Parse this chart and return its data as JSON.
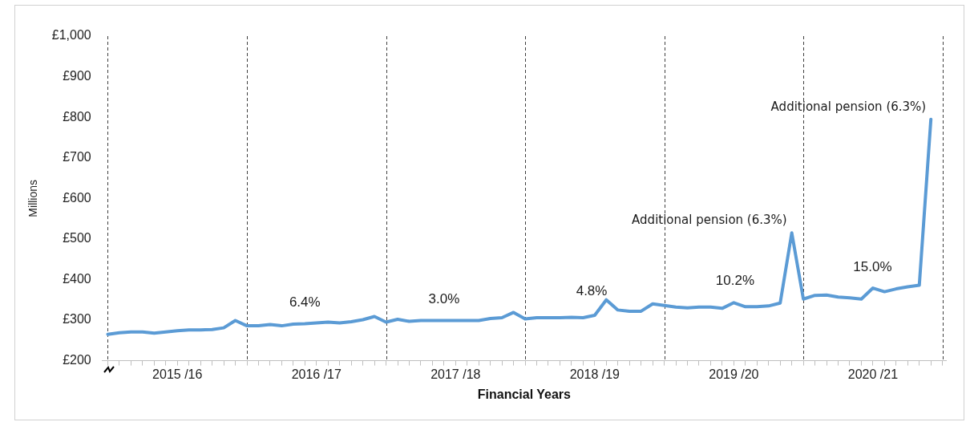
{
  "chart_data": {
    "type": "line",
    "xlabel": "Financial Years",
    "ylabel": "Millions",
    "x": [
      "2015-04",
      "2015-05",
      "2015-06",
      "2015-07",
      "2015-08",
      "2015-09",
      "2015-10",
      "2015-11",
      "2015-12",
      "2016-01",
      "2016-02",
      "2016-03",
      "2016-04",
      "2016-05",
      "2016-06",
      "2016-07",
      "2016-08",
      "2016-09",
      "2016-10",
      "2016-11",
      "2016-12",
      "2017-01",
      "2017-02",
      "2017-03",
      "2017-04",
      "2017-05",
      "2017-06",
      "2017-07",
      "2017-08",
      "2017-09",
      "2017-10",
      "2017-11",
      "2017-12",
      "2018-01",
      "2018-02",
      "2018-03",
      "2018-04",
      "2018-05",
      "2018-06",
      "2018-07",
      "2018-08",
      "2018-09",
      "2018-10",
      "2018-11",
      "2018-12",
      "2019-01",
      "2019-02",
      "2019-03",
      "2019-04",
      "2019-05",
      "2019-06",
      "2019-07",
      "2019-08",
      "2019-09",
      "2019-10",
      "2019-11",
      "2019-12",
      "2020-01",
      "2020-02",
      "2020-03",
      "2020-04",
      "2020-05",
      "2020-06",
      "2020-07",
      "2020-08",
      "2020-09",
      "2020-10",
      "2020-11",
      "2020-12",
      "2021-01",
      "2021-02",
      "2021-03"
    ],
    "series": [
      {
        "color": "#5b9bd5",
        "values": [
          265,
          269,
          271,
          271,
          268,
          271,
          274,
          276,
          276,
          277,
          281,
          299,
          286,
          286,
          289,
          286,
          290,
          291,
          293,
          295,
          293,
          296,
          301,
          309,
          295,
          302,
          297,
          299,
          299,
          299,
          299,
          299,
          299,
          304,
          306,
          319,
          303,
          306,
          306,
          306,
          307,
          306,
          312,
          350,
          325,
          322,
          322,
          340,
          336,
          332,
          330,
          332,
          332,
          329,
          343,
          333,
          333,
          335,
          342,
          515,
          352,
          361,
          362,
          357,
          355,
          352,
          379,
          370,
          377,
          382,
          386,
          795
        ]
      }
    ],
    "xlim": [
      "2015-03-17",
      "2021-04-10"
    ],
    "xticks": [
      {
        "value": "2015-04",
        "label": null
      },
      {
        "value": "2015-05",
        "label": null
      },
      {
        "value": "2015-06",
        "label": null
      },
      {
        "value": "2015-07",
        "label": null
      },
      {
        "value": "2015-08",
        "label": null
      },
      {
        "value": "2015-09",
        "label": null
      },
      {
        "value": "2015-10",
        "label": "2015 /16"
      },
      {
        "value": "2015-11",
        "label": null
      },
      {
        "value": "2015-12",
        "label": null
      },
      {
        "value": "2016-01",
        "label": null
      },
      {
        "value": "2016-02",
        "label": null
      },
      {
        "value": "2016-03",
        "label": null
      },
      {
        "value": "2016-04",
        "label": null
      },
      {
        "value": "2016-05",
        "label": null
      },
      {
        "value": "2016-06",
        "label": null
      },
      {
        "value": "2016-07",
        "label": null
      },
      {
        "value": "2016-08",
        "label": null
      },
      {
        "value": "2016-09",
        "label": null
      },
      {
        "value": "2016-10",
        "label": "2016 /17"
      },
      {
        "value": "2016-11",
        "label": null
      },
      {
        "value": "2016-12",
        "label": null
      },
      {
        "value": "2017-01",
        "label": null
      },
      {
        "value": "2017-02",
        "label": null
      },
      {
        "value": "2017-03",
        "label": null
      },
      {
        "value": "2017-04",
        "label": null
      },
      {
        "value": "2017-05",
        "label": null
      },
      {
        "value": "2017-06",
        "label": null
      },
      {
        "value": "2017-07",
        "label": null
      },
      {
        "value": "2017-08",
        "label": null
      },
      {
        "value": "2017-09",
        "label": null
      },
      {
        "value": "2017-10",
        "label": "2017 /18"
      },
      {
        "value": "2017-11",
        "label": null
      },
      {
        "value": "2017-12",
        "label": null
      },
      {
        "value": "2018-01",
        "label": null
      },
      {
        "value": "2018-02",
        "label": null
      },
      {
        "value": "2018-03",
        "label": null
      },
      {
        "value": "2018-04",
        "label": null
      },
      {
        "value": "2018-05",
        "label": null
      },
      {
        "value": "2018-06",
        "label": null
      },
      {
        "value": "2018-07",
        "label": null
      },
      {
        "value": "2018-08",
        "label": null
      },
      {
        "value": "2018-09",
        "label": null
      },
      {
        "value": "2018-10",
        "label": "2018 /19"
      },
      {
        "value": "2018-11",
        "label": null
      },
      {
        "value": "2018-12",
        "label": null
      },
      {
        "value": "2019-01",
        "label": null
      },
      {
        "value": "2019-02",
        "label": null
      },
      {
        "value": "2019-03",
        "label": null
      },
      {
        "value": "2019-04",
        "label": null
      },
      {
        "value": "2019-05",
        "label": null
      },
      {
        "value": "2019-06",
        "label": null
      },
      {
        "value": "2019-07",
        "label": null
      },
      {
        "value": "2019-08",
        "label": null
      },
      {
        "value": "2019-09",
        "label": null
      },
      {
        "value": "2019-10",
        "label": "2019 /20"
      },
      {
        "value": "2019-11",
        "label": null
      },
      {
        "value": "2019-12",
        "label": null
      },
      {
        "value": "2020-01",
        "label": null
      },
      {
        "value": "2020-02",
        "label": null
      },
      {
        "value": "2020-03",
        "label": null
      },
      {
        "value": "2020-04",
        "label": null
      },
      {
        "value": "2020-05",
        "label": null
      },
      {
        "value": "2020-06",
        "label": null
      },
      {
        "value": "2020-07",
        "label": null
      },
      {
        "value": "2020-08",
        "label": null
      },
      {
        "value": "2020-09",
        "label": null
      },
      {
        "value": "2020-10",
        "label": "2020 /21"
      },
      {
        "value": "2020-11",
        "label": null
      },
      {
        "value": "2020-12",
        "label": null
      },
      {
        "value": "2021-01",
        "label": null
      },
      {
        "value": "2021-02",
        "label": null
      },
      {
        "value": "2021-03",
        "label": null
      },
      {
        "value": "2021-04",
        "label": null
      }
    ],
    "ylim": [
      200,
      1000
    ],
    "yticks": [
      {
        "value": 200,
        "label": "£200"
      },
      {
        "value": 300,
        "label": "£300"
      },
      {
        "value": 400,
        "label": "£400"
      },
      {
        "value": 500,
        "label": "£500"
      },
      {
        "value": 600,
        "label": "£600"
      },
      {
        "value": 700,
        "label": "£700"
      },
      {
        "value": 800,
        "label": "£800"
      },
      {
        "value": 900,
        "label": "£900"
      },
      {
        "value": 1000,
        "label": "£1,000"
      }
    ],
    "ref_lines": [
      {
        "axis": "x",
        "value": "2015-04",
        "color": "#404040",
        "line_style": "dashed"
      },
      {
        "axis": "x",
        "value": "2016-04",
        "color": "#404040",
        "line_style": "dashed"
      },
      {
        "axis": "x",
        "value": "2017-04",
        "color": "#404040",
        "line_style": "dashed"
      },
      {
        "axis": "x",
        "value": "2018-04",
        "color": "#404040",
        "line_style": "dashed"
      },
      {
        "axis": "x",
        "value": "2019-04",
        "color": "#404040",
        "line_style": "dashed"
      },
      {
        "axis": "x",
        "value": "2020-04",
        "color": "#404040",
        "line_style": "dashed"
      },
      {
        "axis": "x",
        "value": "2021-04",
        "color": "#404040",
        "line_style": "dashed"
      }
    ],
    "annotations": [
      "6.4%",
      "3.0%",
      "4.8%",
      "10.2%",
      "15.0%",
      {
        "text": "Additional pension (6.3%)",
        "x": "2020-03",
        "y": 515
      },
      {
        "text": "Additional pension (6.3%)",
        "x": "2021-03",
        "y": 795
      }
    ],
    "grid": false,
    "legend": false,
    "marker": "none",
    "line_style": "solid"
  }
}
